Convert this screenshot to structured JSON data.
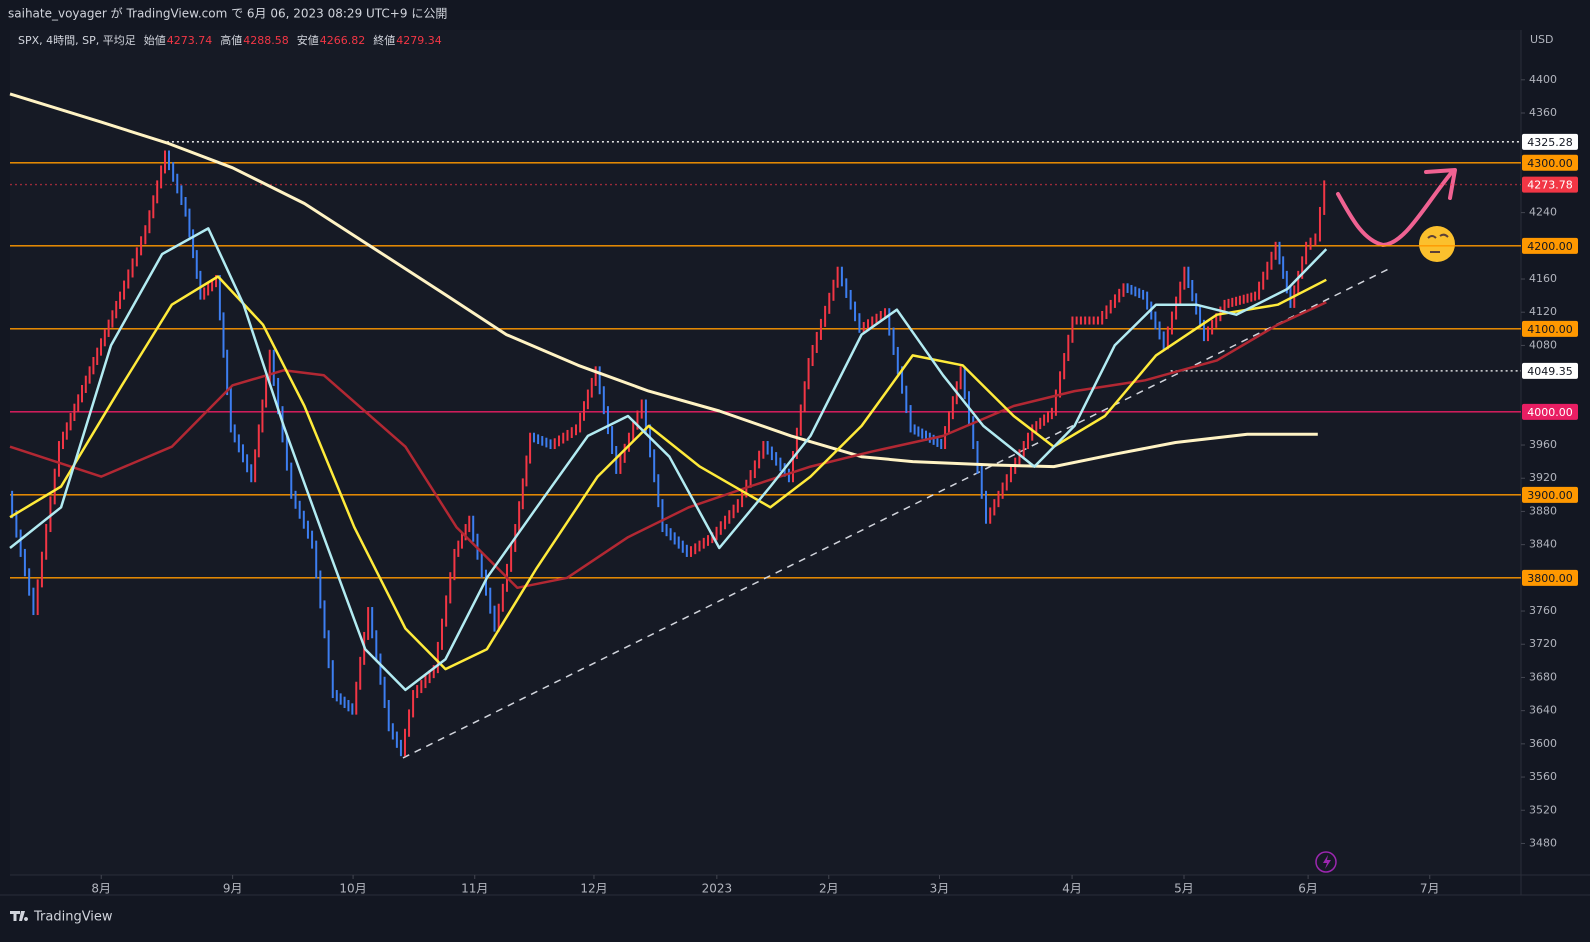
{
  "header": {
    "publisher": "saihate_voyager が TradingView.com で 6月 06, 2023 08:29 UTC+9 に公開"
  },
  "legend": {
    "symbol": "SPX, 4時間, SP, 平均足",
    "open_label": "始値",
    "open": "4273.74",
    "high_label": "高値",
    "high": "4288.58",
    "low_label": "安値",
    "low": "4266.82",
    "close_label": "終値",
    "close": "4279.34"
  },
  "currency": "USD",
  "footer": {
    "brand": "TradingView"
  },
  "chart_data": {
    "type": "line",
    "xlim": [
      0.25,
      12.67
    ],
    "xticks": [
      {
        "value": 1.0,
        "label": "8月"
      },
      {
        "value": 2.08,
        "label": "9月"
      },
      {
        "value": 3.07,
        "label": "10月"
      },
      {
        "value": 4.07,
        "label": "11月"
      },
      {
        "value": 5.05,
        "label": "12月"
      },
      {
        "value": 6.06,
        "label": "2023"
      },
      {
        "value": 6.98,
        "label": "2月"
      },
      {
        "value": 7.89,
        "label": "3月"
      },
      {
        "value": 8.98,
        "label": "4月"
      },
      {
        "value": 9.9,
        "label": "5月"
      },
      {
        "value": 10.92,
        "label": "6月"
      },
      {
        "value": 11.92,
        "label": "7月"
      }
    ],
    "ylim": [
      3442,
      4460
    ],
    "yticks": [
      4400,
      4360,
      4240,
      4160,
      4120,
      4080,
      3960,
      3920,
      3880,
      3840,
      3760,
      3720,
      3680,
      3640,
      3600,
      3560,
      3520,
      3480
    ],
    "series": [
      {
        "style": "bars",
        "up_color": "#f23645",
        "down_color": "#3d7ef0",
        "x": [
          0.25,
          0.46,
          0.67,
          0.92,
          1.17,
          1.38,
          1.54,
          1.71,
          1.83,
          1.96,
          2.08,
          2.25,
          2.4,
          2.58,
          2.75,
          2.92,
          3.08,
          3.21,
          3.38,
          3.48,
          3.58,
          3.75,
          3.92,
          4.04,
          4.25,
          4.42,
          4.54,
          4.71,
          4.92,
          5.08,
          5.25,
          5.46,
          5.63,
          5.83,
          6.04,
          6.25,
          6.46,
          6.67,
          6.83,
          7.07,
          7.25,
          7.46,
          7.67,
          7.92,
          8.08,
          8.29,
          8.46,
          8.67,
          8.83,
          9.0,
          9.21,
          9.42,
          9.58,
          9.75,
          9.92,
          10.08,
          10.25,
          10.5,
          10.67,
          10.79,
          10.92,
          11.0,
          11.07
        ],
        "values": [
          3900,
          3760,
          3960,
          4050,
          4140,
          4220,
          4310,
          4240,
          4140,
          4160,
          3980,
          3920,
          4070,
          3900,
          3840,
          3660,
          3640,
          3760,
          3620,
          3590,
          3660,
          3690,
          3830,
          3870,
          3740,
          3860,
          3970,
          3960,
          3980,
          4050,
          3930,
          4010,
          3860,
          3830,
          3850,
          3890,
          3960,
          3920,
          4060,
          4170,
          4100,
          4120,
          3980,
          3960,
          4050,
          3870,
          3920,
          3980,
          4000,
          4110,
          4110,
          4150,
          4140,
          4080,
          4170,
          4090,
          4130,
          4140,
          4200,
          4130,
          4200,
          4210,
          4274
        ]
      },
      {
        "color": "#fff3c4",
        "width": 3,
        "x": [
          0.25,
          1.0,
          1.54,
          2.08,
          2.67,
          3.25,
          3.83,
          4.33,
          4.92,
          5.5,
          6.08,
          6.67,
          7.25,
          7.67,
          8.33,
          8.83,
          9.33,
          9.83,
          10.42,
          11.0
        ],
        "values": [
          4383,
          4349,
          4324,
          4294,
          4251,
          4196,
          4141,
          4093,
          4056,
          4025,
          4001,
          3971,
          3946,
          3940,
          3936,
          3934,
          3949,
          3963,
          3973,
          3973
        ]
      },
      {
        "color": "#b22833",
        "width": 2.5,
        "x": [
          0.25,
          1.0,
          1.58,
          2.08,
          2.5,
          2.83,
          3.5,
          3.92,
          4.42,
          4.83,
          5.33,
          5.83,
          6.33,
          6.83,
          7.33,
          7.92,
          8.5,
          9.0,
          9.58,
          10.17,
          10.67,
          11.07
        ],
        "values": [
          3958,
          3922,
          3958,
          4032,
          4050,
          4044,
          3958,
          3861,
          3788,
          3800,
          3849,
          3885,
          3910,
          3934,
          3952,
          3971,
          4007,
          4025,
          4038,
          4062,
          4105,
          4132
        ]
      },
      {
        "color": "#ffeb3b",
        "width": 2.5,
        "x": [
          0.25,
          0.67,
          1.17,
          1.58,
          1.96,
          2.33,
          2.67,
          3.08,
          3.5,
          3.83,
          4.17,
          4.58,
          5.08,
          5.5,
          5.92,
          6.5,
          6.83,
          7.25,
          7.67,
          8.08,
          8.5,
          8.83,
          9.25,
          9.67,
          10.17,
          10.67,
          11.07
        ],
        "values": [
          3873,
          3910,
          4032,
          4129,
          4163,
          4105,
          4007,
          3861,
          3739,
          3690,
          3714,
          3812,
          3922,
          3983,
          3934,
          3885,
          3922,
          3983,
          4068,
          4056,
          3995,
          3958,
          3995,
          4068,
          4117,
          4129,
          4159
        ]
      },
      {
        "color": "#b2ebf2",
        "width": 2.5,
        "x": [
          0.25,
          0.67,
          1.08,
          1.5,
          1.88,
          2.17,
          2.5,
          2.83,
          3.17,
          3.5,
          3.83,
          4.17,
          4.58,
          5.0,
          5.33,
          5.67,
          6.08,
          6.5,
          6.83,
          7.25,
          7.54,
          7.92,
          8.25,
          8.67,
          9.0,
          9.33,
          9.67,
          10.0,
          10.33,
          10.75,
          11.07
        ],
        "values": [
          3836,
          3885,
          4080,
          4190,
          4221,
          4129,
          3983,
          3849,
          3714,
          3665,
          3702,
          3800,
          3885,
          3971,
          3995,
          3946,
          3836,
          3910,
          3971,
          4093,
          4123,
          4044,
          3983,
          3934,
          3983,
          4080,
          4129,
          4129,
          4117,
          4148,
          4196
        ]
      }
    ],
    "trendline": {
      "x": [
        3.48,
        11.58
      ],
      "values": [
        3583,
        4172
      ],
      "color": "#d1d4dc"
    },
    "levels": [
      {
        "value": 4325.28,
        "label": "4325.28",
        "color": "#ffffff",
        "style": "dotted",
        "from": 1.54
      },
      {
        "value": 4300,
        "label": "4300.00",
        "color": "#ff9800",
        "style": "solid",
        "from": 0.25
      },
      {
        "value": 4273.78,
        "label": "4273.78",
        "color": "#f23645",
        "style": "dotted",
        "from": 0.25
      },
      {
        "value": 4200,
        "label": "4200.00",
        "color": "#ff9800",
        "style": "solid",
        "from": 0.25
      },
      {
        "value": 4100,
        "label": "4100.00",
        "color": "#ff9800",
        "style": "solid",
        "from": 0.25
      },
      {
        "value": 4049.35,
        "label": "4049.35",
        "color": "#ffffff",
        "style": "dotted",
        "from": 9.79
      },
      {
        "value": 4000,
        "label": "4000.00",
        "color": "#e91e63",
        "style": "solid",
        "from": 0.25
      },
      {
        "value": 3900,
        "label": "3900.00",
        "color": "#ff9800",
        "style": "solid",
        "from": 0.25
      },
      {
        "value": 3800,
        "label": "3800.00",
        "color": "#ff9800",
        "style": "solid",
        "from": 0.25
      }
    ]
  }
}
